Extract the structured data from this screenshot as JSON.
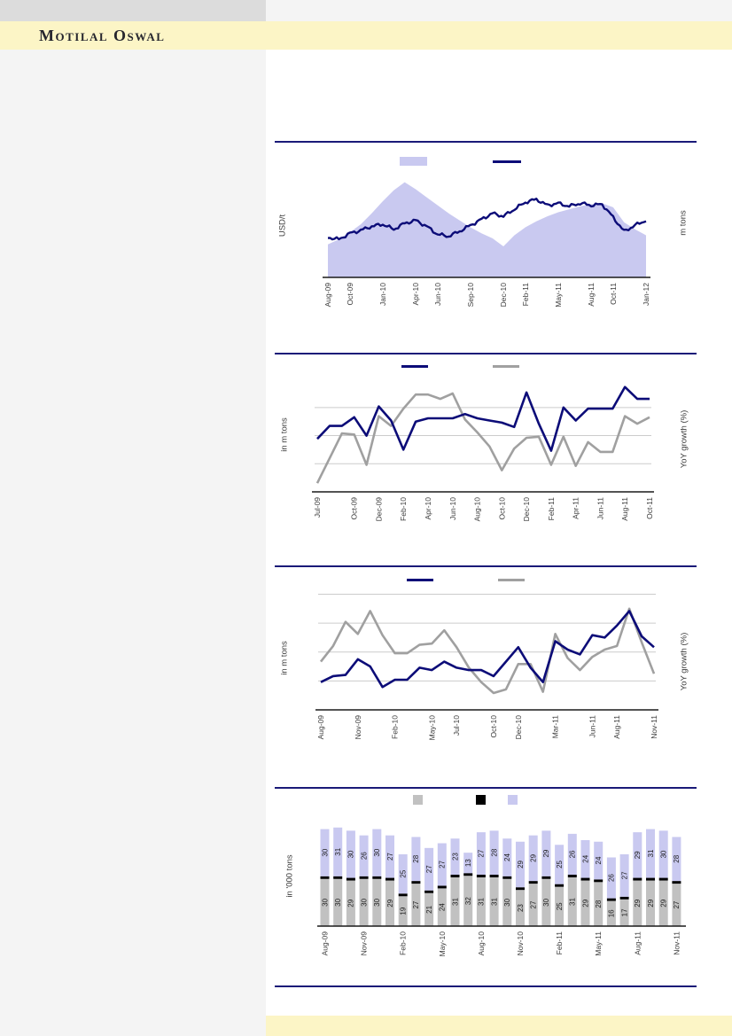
{
  "page": {
    "brand": "Motilal Oswal",
    "colors": {
      "accent_yellow": "#fcf5c6",
      "separator_navy": "#1a1a78",
      "sidebar_gray": "#f4f4f4",
      "header_box_gray": "#dcdcdc"
    }
  },
  "chart_data": [
    {
      "type": "area",
      "subtype": "area_plus_line",
      "title": "",
      "ylabel_left": "USD/t",
      "ylabel_right": "m tons",
      "value_scale": "relative 0-100 (no y tick labels visible in image)",
      "n_points": 30,
      "x_range": [
        "Aug-09",
        "Jan-12"
      ],
      "x_tick_labels": [
        "Aug-09",
        "Oct-09",
        "Jan-10",
        "Apr-10",
        "Jun-10",
        "Sep-10",
        "Dec-10",
        "Feb-11",
        "May-11",
        "Aug-11",
        "Oct-11",
        "Jan-12"
      ],
      "x_tick_point_index": [
        0,
        2,
        5,
        8,
        10,
        13,
        16,
        18,
        21,
        24,
        26,
        29
      ],
      "grid": false,
      "legend": {
        "position": "top",
        "entries": [
          {
            "swatch": "area",
            "color": "#c9c9f0",
            "label": ""
          },
          {
            "swatch": "line",
            "color": "#0c0c78",
            "label": ""
          }
        ]
      },
      "series": [
        {
          "name": "lavender_area",
          "type": "area",
          "color": "#c9c9f0",
          "values": [
            33,
            38,
            45,
            53,
            64,
            76,
            87,
            95,
            88,
            80,
            72,
            64,
            57,
            50,
            44,
            39,
            31,
            42,
            50,
            56,
            61,
            65,
            68,
            71,
            73,
            74,
            70,
            55,
            48,
            42
          ]
        },
        {
          "name": "navy_line",
          "type": "line",
          "color": "#0c0c78",
          "noisy": true,
          "values": [
            40,
            38,
            44,
            47,
            51,
            53,
            48,
            54,
            57,
            51,
            43,
            41,
            46,
            52,
            58,
            64,
            61,
            68,
            75,
            78,
            72,
            74,
            71,
            74,
            72,
            73,
            60,
            46,
            52,
            57
          ]
        }
      ]
    },
    {
      "type": "line",
      "title": "",
      "ylabel_left": "in m tons",
      "ylabel_right": "YoY growth (%)",
      "value_scale": "relative 0-100 (no y tick labels visible in image)",
      "n_points": 28,
      "x_range": [
        "Jul-09",
        "Oct-11"
      ],
      "x_tick_labels": [
        "Jul-09",
        "Oct-09",
        "Dec-09",
        "Feb-10",
        "Apr-10",
        "Jun-10",
        "Aug-10",
        "Oct-10",
        "Dec-10",
        "Feb-11",
        "Apr-11",
        "Jun-11",
        "Aug-11",
        "Oct-11"
      ],
      "x_tick_point_index": [
        0,
        3,
        5,
        7,
        9,
        11,
        13,
        15,
        17,
        19,
        21,
        23,
        25,
        27
      ],
      "grid": true,
      "gridline_levels": [
        26,
        52,
        78
      ],
      "legend": {
        "position": "top",
        "entries": [
          {
            "swatch": "line",
            "color": "#0c0c78",
            "label": ""
          },
          {
            "swatch": "line",
            "color": "#a0a0a0",
            "label": ""
          }
        ]
      },
      "series": [
        {
          "name": "gray_line",
          "type": "line",
          "color": "#a0a0a0",
          "values": [
            8,
            31,
            54,
            53,
            25,
            70,
            61,
            77,
            90,
            90,
            86,
            91,
            67,
            55,
            42,
            20,
            40,
            50,
            51,
            25,
            51,
            24,
            46,
            37,
            37,
            70,
            63,
            69
          ]
        },
        {
          "name": "navy_line",
          "type": "line",
          "color": "#0c0c78",
          "values": [
            49,
            61,
            61,
            69,
            52,
            79,
            66,
            39,
            65,
            68,
            68,
            68,
            72,
            68,
            66,
            64,
            60,
            92,
            63,
            38,
            78,
            66,
            77,
            77,
            77,
            97,
            86,
            86
          ]
        }
      ]
    },
    {
      "type": "line",
      "title": "",
      "ylabel_left": "in m tons",
      "ylabel_right": "YoY growth (%)",
      "value_scale": "relative 0-100 (no y tick labels visible in image)",
      "n_points": 28,
      "x_range": [
        "Aug-09",
        "Nov-11"
      ],
      "x_tick_labels": [
        "Aug-09",
        "Nov-09",
        "Feb-10",
        "May-10",
        "Jul-10",
        "Oct-10",
        "Dec-10",
        "Mar-11",
        "Jun-11",
        "Aug-11",
        "Nov-11"
      ],
      "x_tick_point_index": [
        0,
        3,
        6,
        9,
        11,
        14,
        16,
        19,
        22,
        24,
        27
      ],
      "grid": true,
      "gridline_levels": [
        24,
        48,
        72,
        96
      ],
      "legend": {
        "position": "top",
        "entries": [
          {
            "swatch": "line",
            "color": "#0c0c78",
            "label": ""
          },
          {
            "swatch": "line",
            "color": "#a0a0a0",
            "label": ""
          }
        ]
      },
      "series": [
        {
          "name": "gray_line",
          "type": "line",
          "color": "#a0a0a0",
          "values": [
            40,
            53,
            73,
            63,
            82,
            62,
            47,
            47,
            54,
            55,
            66,
            52,
            35,
            23,
            14,
            17,
            38,
            38,
            15,
            63,
            43,
            33,
            44,
            50,
            53,
            84,
            56,
            30
          ]
        },
        {
          "name": "navy_line",
          "type": "line",
          "color": "#0c0c78",
          "values": [
            23,
            28,
            29,
            42,
            36,
            19,
            25,
            25,
            35,
            33,
            40,
            35,
            33,
            33,
            28,
            40,
            52,
            35,
            23,
            57,
            50,
            46,
            62,
            60,
            70,
            82,
            61,
            52
          ]
        }
      ]
    },
    {
      "type": "bar",
      "subtype": "stacked",
      "title": "",
      "ylabel_left": "in '000 tons",
      "unit": "'000 tons",
      "n_bars": 28,
      "x_range": [
        "Aug-09",
        "Nov-11"
      ],
      "x_tick_labels": [
        "Aug-09",
        "Nov-09",
        "Feb-10",
        "May-10",
        "Aug-10",
        "Nov-10",
        "Feb-11",
        "May-11",
        "Aug-11",
        "Nov-11"
      ],
      "x_tick_bar_index": [
        0,
        3,
        6,
        9,
        12,
        15,
        18,
        21,
        24,
        27
      ],
      "legend": {
        "position": "top",
        "entries": [
          {
            "swatch": "square",
            "color": "#c1c1c1",
            "label": ""
          },
          {
            "swatch": "square",
            "color": "#000000",
            "label": ""
          },
          {
            "swatch": "square",
            "color": "#c9c9f0",
            "label": ""
          }
        ]
      },
      "series": [
        {
          "name": "bottom_gray",
          "color": "#c1c1c1",
          "labeled": true,
          "values": [
            30,
            30,
            29,
            30,
            30,
            29,
            19,
            27,
            21,
            24,
            31,
            32,
            31,
            31,
            30,
            23,
            27,
            30,
            25,
            31,
            29,
            28,
            16,
            17,
            29,
            29,
            29,
            27
          ]
        },
        {
          "name": "middle_black",
          "color": "#000000",
          "labeled": false,
          "values": [
            1,
            1,
            1,
            1,
            1,
            1,
            1,
            1,
            1,
            1,
            1,
            1,
            1,
            1,
            1,
            1,
            1,
            1,
            1,
            1,
            1,
            1,
            1,
            1,
            1,
            1,
            1,
            1
          ]
        },
        {
          "name": "top_lavender",
          "color": "#c9c9f0",
          "labeled": true,
          "values": [
            30,
            31,
            30,
            26,
            30,
            27,
            25,
            28,
            27,
            27,
            23,
            13,
            27,
            28,
            24,
            29,
            29,
            29,
            25,
            26,
            24,
            24,
            26,
            27,
            29,
            31,
            30,
            28
          ]
        }
      ]
    }
  ]
}
